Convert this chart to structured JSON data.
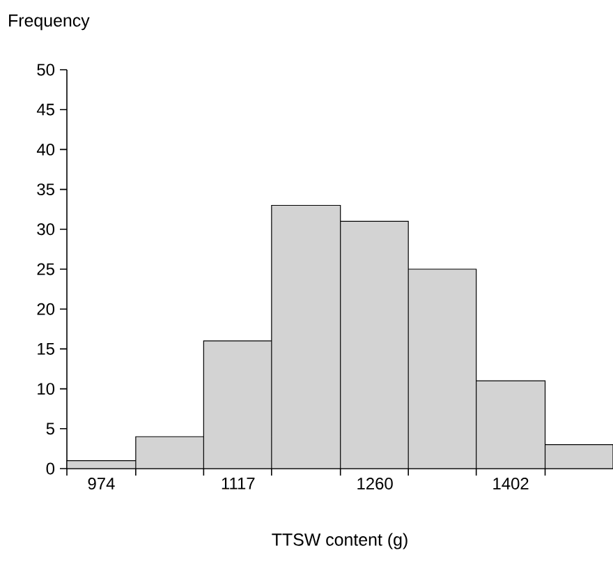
{
  "chart_data": {
    "type": "histogram",
    "xlabel": "TTSW content (g)",
    "ylabel": "Frequency",
    "bins": [
      938,
      1010,
      1081,
      1152,
      1224,
      1295,
      1366,
      1438,
      1509
    ],
    "values": [
      1,
      4,
      16,
      33,
      31,
      25,
      11,
      3
    ],
    "color": "#d3d3d3",
    "xlim": [
      938,
      1509
    ],
    "ylim": [
      0,
      50
    ],
    "xticks": [
      974,
      1117,
      1260,
      1402,
      {
        "value": 938,
        "label": null
      },
      {
        "value": 1010,
        "label": null
      },
      {
        "value": 1081,
        "label": null
      },
      {
        "value": 1152,
        "label": null
      },
      {
        "value": 1224,
        "label": null
      },
      {
        "value": 1295,
        "label": null
      },
      {
        "value": 1366,
        "label": null
      },
      {
        "value": 1438,
        "label": null
      }
    ],
    "yticks": [
      0,
      5,
      10,
      15,
      20,
      25,
      30,
      35,
      40,
      45,
      50
    ],
    "grid": false
  }
}
